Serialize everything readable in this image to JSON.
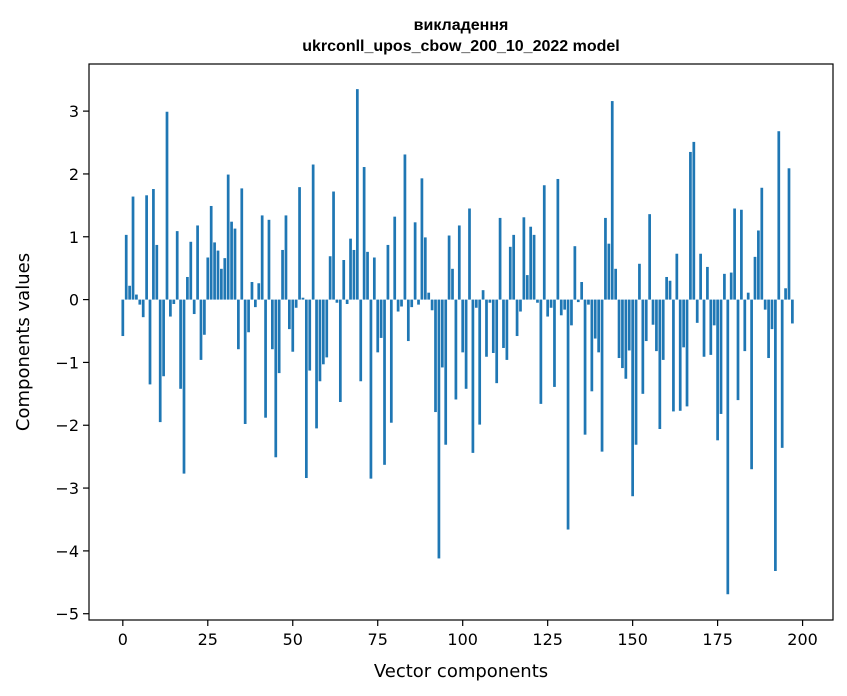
{
  "chart_data": {
    "type": "bar",
    "title_line1": "викладення",
    "title_line2": "ukrconll_upos_cbow_200_10_2022 model",
    "xlabel": "Vector components",
    "ylabel": "Components values",
    "xlim": [
      -9.95,
      208.95
    ],
    "ylim": [
      -5.1,
      3.75
    ],
    "xticks": [
      0,
      25,
      50,
      75,
      100,
      125,
      150,
      175,
      200
    ],
    "yticks": [
      -5,
      -4,
      -3,
      -2,
      -1,
      0,
      1,
      2,
      3
    ],
    "bar_color": "#1f77b4",
    "values": [
      -0.58,
      1.03,
      0.22,
      1.64,
      0.08,
      -0.08,
      -0.28,
      1.66,
      -1.35,
      1.76,
      0.87,
      -1.95,
      -1.22,
      2.99,
      -0.27,
      -0.07,
      1.09,
      -1.42,
      -2.77,
      0.36,
      0.92,
      -0.23,
      1.18,
      -0.96,
      -0.56,
      0.67,
      1.49,
      0.91,
      0.78,
      0.49,
      0.66,
      1.99,
      1.24,
      1.13,
      -0.79,
      1.77,
      -1.98,
      -0.52,
      0.28,
      -0.12,
      0.26,
      1.34,
      -1.88,
      1.27,
      -0.79,
      -2.51,
      -1.17,
      0.79,
      1.34,
      -0.47,
      -0.83,
      -0.13,
      1.79,
      0.03,
      -2.84,
      -1.13,
      2.15,
      -2.05,
      -1.3,
      -1.03,
      -0.92,
      0.69,
      1.72,
      -0.05,
      -1.63,
      0.63,
      -0.07,
      0.97,
      0.79,
      3.35,
      -1.3,
      2.11,
      0.76,
      -2.85,
      0.67,
      -0.84,
      -0.61,
      -2.63,
      0.87,
      -1.96,
      1.32,
      -0.19,
      -0.11,
      2.31,
      -0.66,
      -0.12,
      1.23,
      -0.08,
      1.93,
      0.99,
      0.11,
      -0.17,
      -1.79,
      -4.12,
      -1.08,
      -2.31,
      1.02,
      0.49,
      -1.59,
      1.18,
      -0.84,
      -1.42,
      1.45,
      -2.44,
      -0.13,
      -1.99,
      0.15,
      -0.91,
      -0.05,
      -0.85,
      -1.33,
      1.3,
      -0.77,
      -0.96,
      0.84,
      1.03,
      -0.58,
      -0.19,
      1.31,
      0.39,
      1.16,
      1.03,
      -0.05,
      -1.66,
      1.82,
      -0.27,
      -0.13,
      -1.39,
      1.92,
      -0.25,
      -0.16,
      -3.66,
      -0.41,
      0.85,
      -0.04,
      0.28,
      -2.15,
      -0.08,
      -1.46,
      -0.62,
      -0.84,
      -2.42,
      1.3,
      0.89,
      3.16,
      0.49,
      -0.93,
      -1.09,
      -1.26,
      -0.81,
      -3.13,
      -2.31,
      0.57,
      -1.5,
      -0.66,
      1.36,
      -0.4,
      -0.82,
      -2.06,
      -0.96,
      0.36,
      0.3,
      -1.78,
      0.73,
      -1.77,
      -0.76,
      -1.7,
      2.35,
      2.51,
      -0.37,
      0.73,
      -0.91,
      0.52,
      -0.88,
      -0.41,
      -2.24,
      -1.82,
      0.41,
      -4.69,
      0.43,
      1.45,
      -1.6,
      1.43,
      -0.82,
      0.11,
      -2.7,
      0.68,
      1.1,
      1.78,
      -0.16,
      -0.93,
      -0.47,
      -4.32,
      2.68,
      -2.36,
      0.18,
      2.09,
      -0.38
    ]
  }
}
